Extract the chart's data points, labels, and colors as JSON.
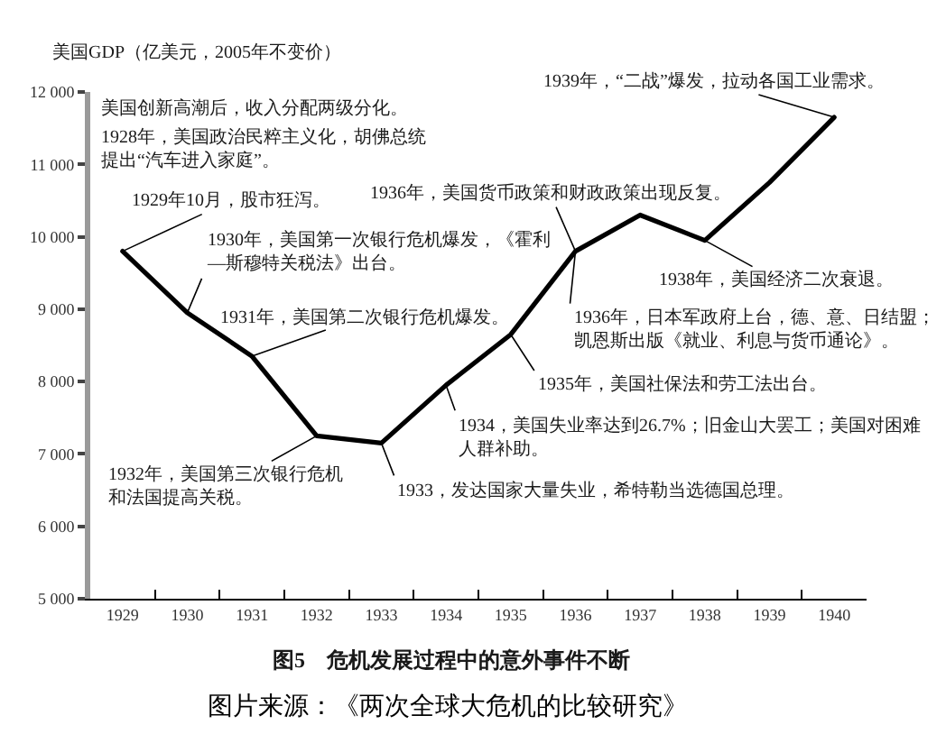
{
  "chart_data": {
    "type": "line",
    "title": "图5　危机发展过程中的意外事件不断",
    "ylabel": "美国GDP（亿美元，2005年不变价）",
    "categories": [
      "1929",
      "1930",
      "1931",
      "1932",
      "1933",
      "1934",
      "1935",
      "1936",
      "1937",
      "1938",
      "1939",
      "1940"
    ],
    "values": [
      9800,
      8950,
      8350,
      7250,
      7150,
      7950,
      8650,
      9800,
      10300,
      9950,
      10750,
      11650
    ],
    "color": "#000000",
    "line_style": "solid",
    "ylim": [
      5000,
      12000
    ],
    "yticks": [
      {
        "value": 5000,
        "label": "5 000"
      },
      {
        "value": 6000,
        "label": "6 000"
      },
      {
        "value": 7000,
        "label": "7 000"
      },
      {
        "value": 8000,
        "label": "8 000"
      },
      {
        "value": 9000,
        "label": "9 000"
      },
      {
        "value": 10000,
        "label": "10 000"
      },
      {
        "value": 11000,
        "label": "11 000"
      },
      {
        "value": 12000,
        "label": "12 000"
      }
    ],
    "annotations": [
      "美国创新高潮后，收入分配两级分化。",
      "1928年，美国政治民粹主义化，胡佛总统提出“汽车进入家庭”。",
      {
        "text": "1929年10月，股市狂泻。",
        "x": "1929",
        "y": 9800
      },
      {
        "text": "1930年，美国第一次银行危机爆发，《霍利—斯穆特关税法》出台。",
        "x": "1930",
        "y": 8950
      },
      {
        "text": "1931年，美国第二次银行危机爆发。",
        "x": "1931",
        "y": 8350
      },
      {
        "text": "1932年，美国第三次银行危机和法国提高关税。",
        "x": "1932",
        "y": 7250
      },
      {
        "text": "1933，发达国家大量失业，希特勒当选德国总理。",
        "x": "1933",
        "y": 7150
      },
      {
        "text": "1934，美国失业率达到26.7%；旧金山大罢工；美国对困难人群补助。",
        "x": "1934",
        "y": 7950
      },
      {
        "text": "1935年，美国社保法和劳工法出台。",
        "x": "1935",
        "y": 8650
      },
      {
        "text": "1936年，日本军政府上台，德、意、日结盟；凯恩斯出版《就业、利息与货币通论》。",
        "x": "1936",
        "y": 9800
      },
      {
        "text": "1936年，美国货币政策和财政政策出现反复。",
        "x": "1936",
        "y": 9800
      },
      {
        "text": "1938年，美国经济二次衰退。",
        "x": "1938",
        "y": 9950
      },
      {
        "text": "1939年，“二战”爆发，拉动各国工业需求。",
        "x": "1940",
        "y": 11650
      },
      "图片来源：《两次全球大危机的比较研究》"
    ]
  }
}
